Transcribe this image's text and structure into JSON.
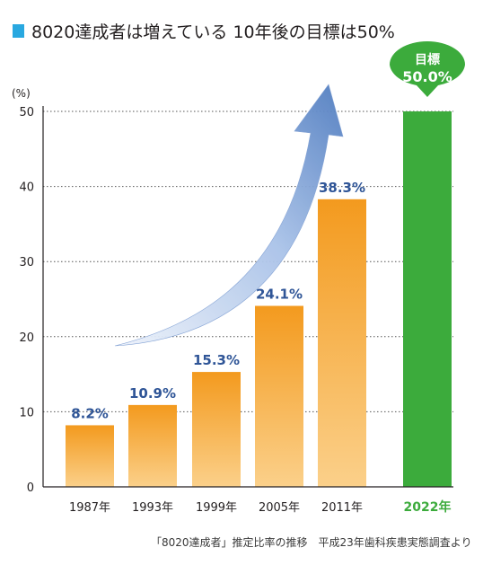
{
  "title": "8020達成者は増えている 10年後の目標は50%",
  "source": "「8020達成者」推定比率の推移　平成23年歯科疾患実態調査より",
  "colors": {
    "title_marker": "#29a8e0",
    "bar_top": "#f39a1e",
    "bar_bottom": "#fbd08a",
    "goal_bar": "#3cab3c",
    "value_label": "#2f5597",
    "goal_label": "#3cab3c",
    "arrow_light": "#e6eef9",
    "arrow_dark": "#5a84c4"
  },
  "chart_data": {
    "type": "bar",
    "ylabel": "(%)",
    "ylim": [
      0,
      50
    ],
    "yticks": [
      0,
      10,
      20,
      30,
      40,
      50
    ],
    "grid": "dotted horizontal",
    "categories": [
      "1987年",
      "1993年",
      "1999年",
      "2005年",
      "2011年",
      "2022年"
    ],
    "values": [
      8.2,
      10.9,
      15.3,
      24.1,
      38.3,
      50.0
    ],
    "value_labels": [
      "8.2%",
      "10.9%",
      "15.3%",
      "24.1%",
      "38.3%",
      ""
    ],
    "goal": {
      "category": "2022年",
      "value": 50.0,
      "callout_title": "目標",
      "callout_value": "50.0%"
    },
    "annotation": "upward trend arrow"
  }
}
